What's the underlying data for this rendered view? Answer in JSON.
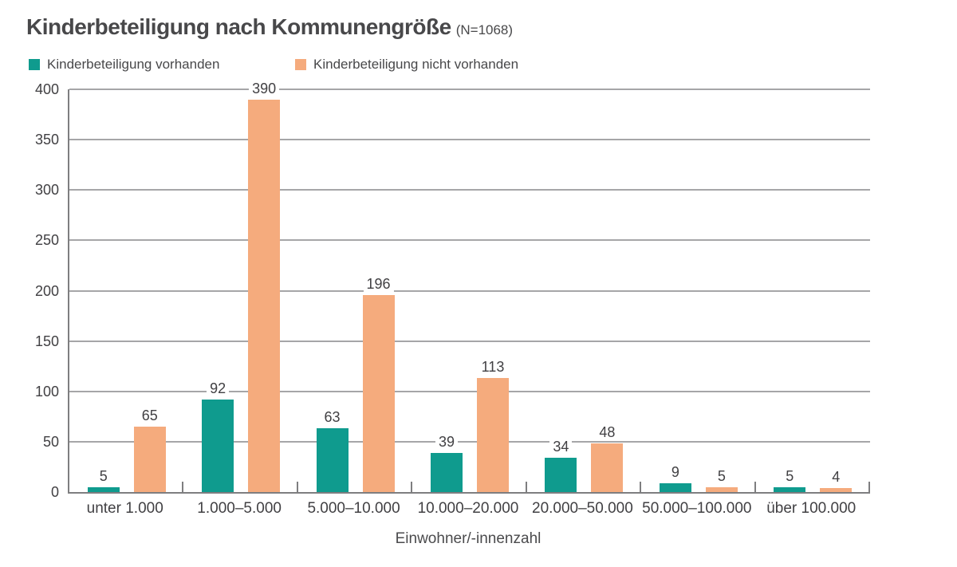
{
  "title": {
    "main": "Kinderbeteiligung nach Kommunengröße",
    "n_label": "(N=1068)"
  },
  "legend": [
    {
      "label": "Kinderbeteiligung vorhanden",
      "color": "#0f9b8e"
    },
    {
      "label": "Kinderbeteiligung nicht vorhanden",
      "color": "#f5ab7d"
    }
  ],
  "chart_data": {
    "type": "bar",
    "title": "Kinderbeteiligung nach Kommunengröße (N=1068)",
    "categories": [
      "unter 1.000",
      "1.000–5.000",
      "5.000–10.000",
      "10.000–20.000",
      "20.000–50.000",
      "50.000–100.000",
      "über 100.000"
    ],
    "series": [
      {
        "name": "Kinderbeteiligung vorhanden",
        "color": "#0f9b8e",
        "values": [
          5,
          92,
          63,
          39,
          34,
          9,
          5
        ]
      },
      {
        "name": "Kinderbeteiligung nicht vorhanden",
        "color": "#f5ab7d",
        "values": [
          65,
          390,
          196,
          113,
          48,
          5,
          4
        ]
      }
    ],
    "xlabel": "Einwohner/-innenzahl",
    "ylabel": "",
    "ylim": [
      0,
      400
    ],
    "ytick_step": 50,
    "grid": true,
    "legend_position": "top",
    "value_labels": true
  },
  "colors": {
    "bar_teal": "#0f9b8e",
    "bar_orange": "#f5ab7d",
    "text_dark": "#414043",
    "title_gray": "#48484a",
    "gridline": "#a6a6a8",
    "axis": "#7e7e80",
    "background": "#ffffff"
  }
}
